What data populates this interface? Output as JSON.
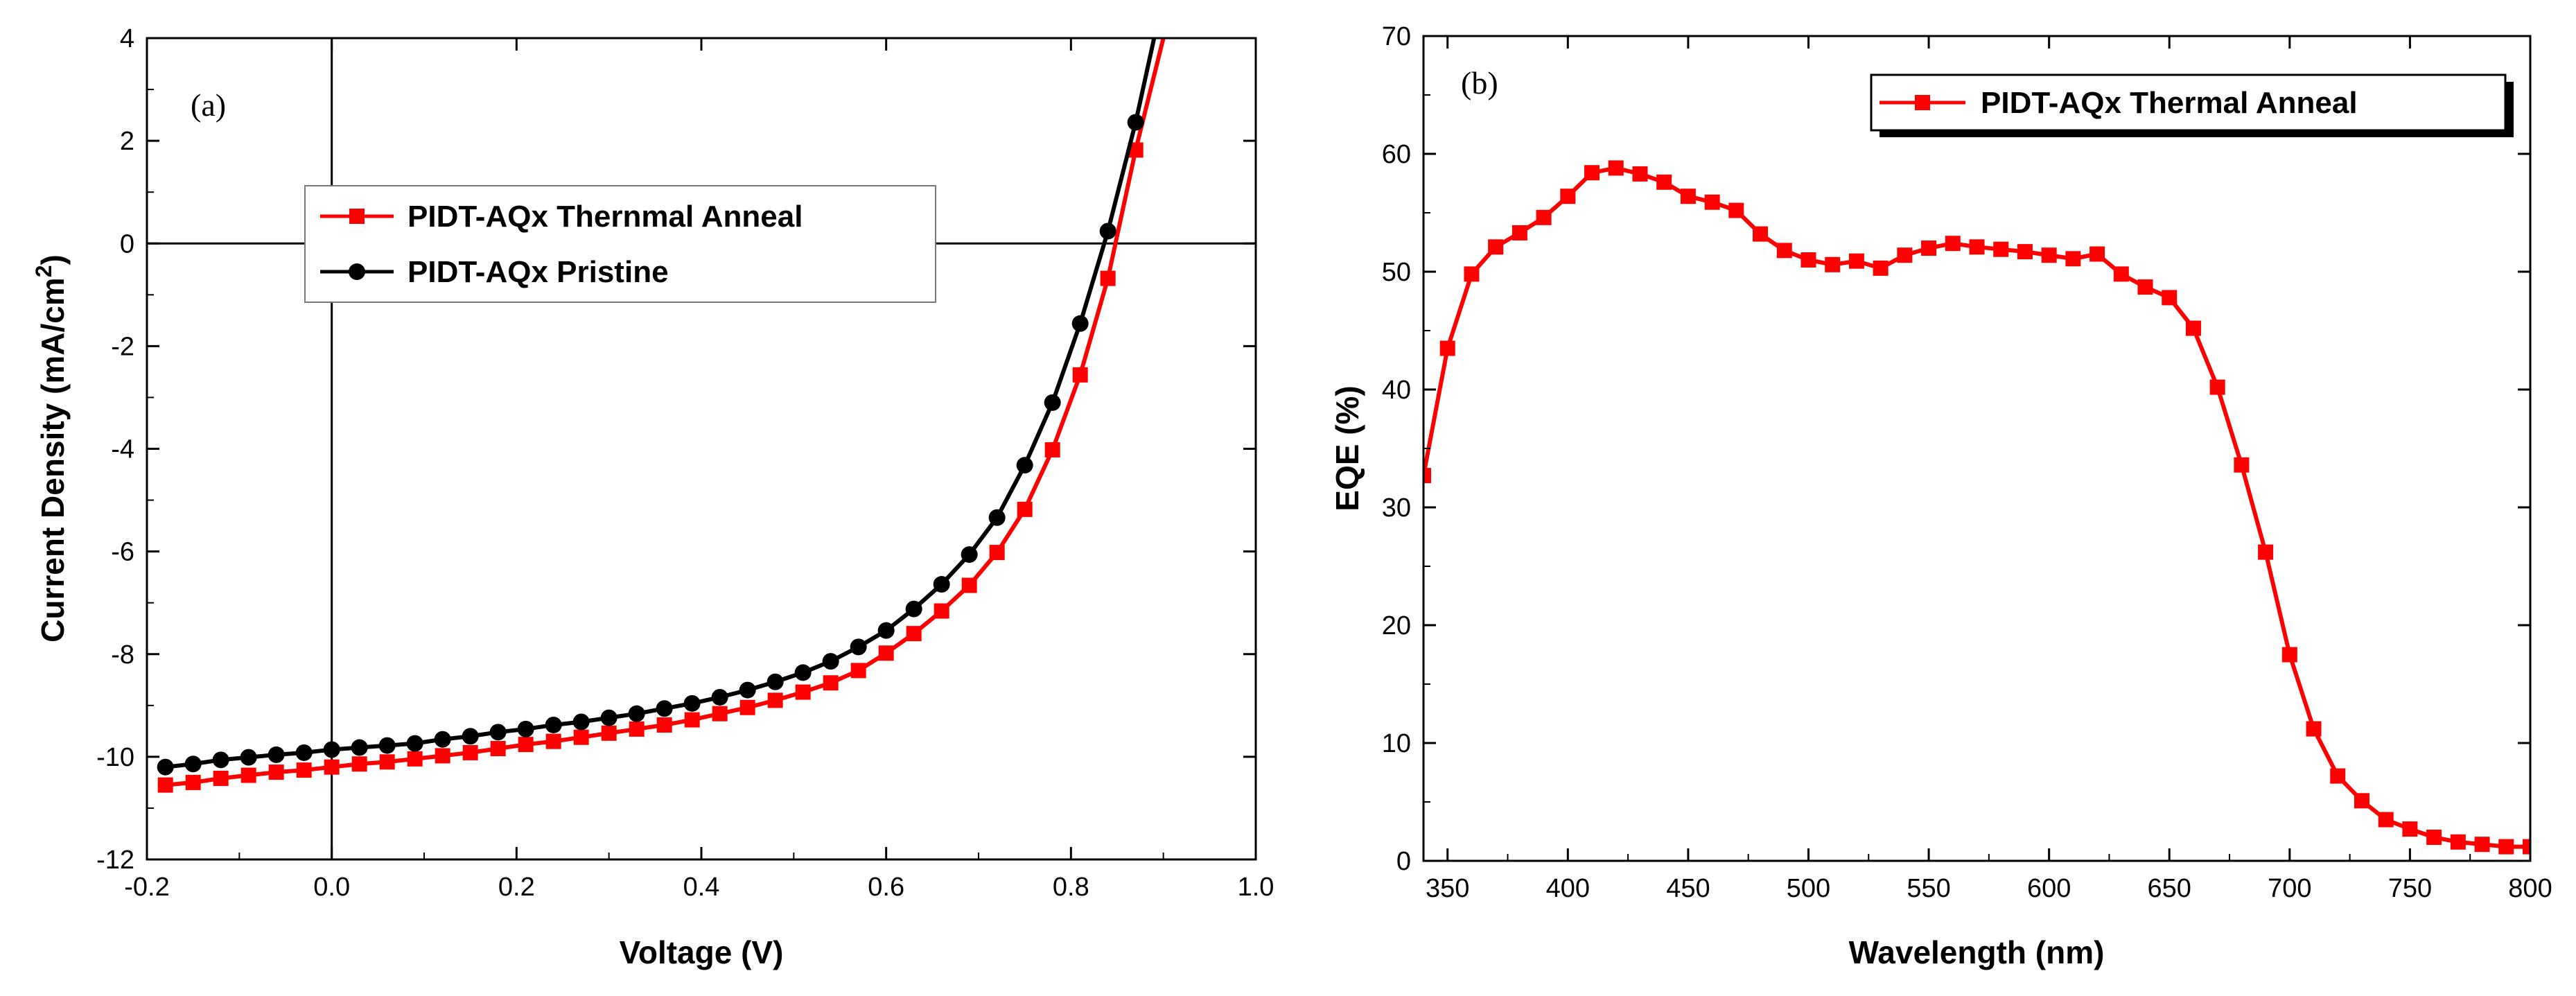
{
  "chart_data": [
    {
      "type": "line",
      "panel_label": "(a)",
      "xlabel": "Voltage (V)",
      "ylabel": "Current Density (mA/cm",
      "ylabel_sup": "2",
      "ylabel_end": ")",
      "xlim": [
        -0.2,
        1.0
      ],
      "ylim": [
        -12,
        4
      ],
      "xticks": [
        -0.2,
        0.0,
        0.2,
        0.4,
        0.6,
        0.8,
        1.0
      ],
      "xtick_labels": [
        "-0.2",
        "0.0",
        "0.2",
        "0.4",
        "0.6",
        "0.8",
        "1.0"
      ],
      "yticks": [
        -12,
        -10,
        -8,
        -6,
        -4,
        -2,
        0,
        2,
        4
      ],
      "ytick_labels": [
        "-12",
        "-10",
        "-8",
        "-6",
        "-4",
        "-2",
        "0",
        "2",
        "4"
      ],
      "legend_position": "upper-left",
      "series": [
        {
          "name": "PIDT-AQx Thernmal Anneal",
          "color": "#ff0000",
          "marker": "square",
          "x": [
            -0.18,
            -0.15,
            -0.12,
            -0.09,
            -0.06,
            -0.03,
            0.0,
            0.03,
            0.06,
            0.09,
            0.12,
            0.15,
            0.18,
            0.21,
            0.24,
            0.27,
            0.3,
            0.33,
            0.36,
            0.39,
            0.42,
            0.45,
            0.48,
            0.51,
            0.54,
            0.57,
            0.6,
            0.63,
            0.66,
            0.69,
            0.72,
            0.75,
            0.78,
            0.81,
            0.84,
            0.87,
            0.9
          ],
          "y": [
            -10.55,
            -10.5,
            -10.42,
            -10.36,
            -10.3,
            -10.26,
            -10.2,
            -10.14,
            -10.1,
            -10.04,
            -9.98,
            -9.92,
            -9.84,
            -9.76,
            -9.7,
            -9.62,
            -9.54,
            -9.46,
            -9.38,
            -9.28,
            -9.16,
            -9.04,
            -8.9,
            -8.74,
            -8.56,
            -8.32,
            -7.98,
            -7.6,
            -7.16,
            -6.66,
            -6.02,
            -5.18,
            -4.02,
            -2.56,
            -0.68,
            1.82,
            4.6
          ]
        },
        {
          "name": "PIDT-AQx Pristine",
          "color": "#000000",
          "marker": "circle",
          "x": [
            -0.18,
            -0.15,
            -0.12,
            -0.09,
            -0.06,
            -0.03,
            0.0,
            0.03,
            0.06,
            0.09,
            0.12,
            0.15,
            0.18,
            0.21,
            0.24,
            0.27,
            0.3,
            0.33,
            0.36,
            0.39,
            0.42,
            0.45,
            0.48,
            0.51,
            0.54,
            0.57,
            0.6,
            0.63,
            0.66,
            0.69,
            0.72,
            0.75,
            0.78,
            0.81,
            0.84,
            0.87,
            0.89
          ],
          "y": [
            -10.2,
            -10.14,
            -10.06,
            -10.01,
            -9.96,
            -9.92,
            -9.86,
            -9.82,
            -9.78,
            -9.74,
            -9.66,
            -9.6,
            -9.52,
            -9.46,
            -9.38,
            -9.32,
            -9.24,
            -9.16,
            -9.06,
            -8.96,
            -8.84,
            -8.7,
            -8.54,
            -8.36,
            -8.14,
            -7.86,
            -7.54,
            -7.12,
            -6.64,
            -6.06,
            -5.34,
            -4.32,
            -3.1,
            -1.56,
            0.24,
            2.36,
            4.2
          ]
        }
      ]
    },
    {
      "type": "line",
      "panel_label": "(b)",
      "xlabel": "Wavelength (nm)",
      "ylabel": "EQE (%)",
      "xlim": [
        340,
        800
      ],
      "ylim": [
        0,
        70
      ],
      "xticks": [
        350,
        400,
        450,
        500,
        550,
        600,
        650,
        700,
        750,
        800
      ],
      "xtick_labels": [
        "350",
        "400",
        "450",
        "500",
        "550",
        "600",
        "650",
        "700",
        "750",
        "800"
      ],
      "yticks": [
        0,
        10,
        20,
        30,
        40,
        50,
        60,
        70
      ],
      "ytick_labels": [
        "0",
        "10",
        "20",
        "30",
        "40",
        "50",
        "60",
        "70"
      ],
      "legend_position": "upper-right",
      "series": [
        {
          "name": "PIDT-AQx Thermal Anneal",
          "color": "#ff0000",
          "marker": "square",
          "x": [
            340,
            350,
            360,
            370,
            380,
            390,
            400,
            410,
            420,
            430,
            440,
            450,
            460,
            470,
            480,
            490,
            500,
            510,
            520,
            530,
            540,
            550,
            560,
            570,
            580,
            590,
            600,
            610,
            620,
            630,
            640,
            650,
            660,
            670,
            680,
            690,
            700,
            710,
            720,
            730,
            740,
            750,
            760,
            770,
            780,
            790,
            800
          ],
          "y": [
            32.7,
            43.5,
            49.8,
            52.1,
            53.3,
            54.6,
            56.4,
            58.4,
            58.8,
            58.3,
            57.6,
            56.4,
            55.9,
            55.2,
            53.2,
            51.8,
            51.0,
            50.6,
            50.9,
            50.3,
            51.4,
            52.0,
            52.4,
            52.1,
            51.9,
            51.7,
            51.4,
            51.1,
            51.5,
            49.8,
            48.7,
            47.8,
            45.2,
            40.2,
            33.6,
            26.2,
            17.5,
            11.2,
            7.2,
            5.1,
            3.5,
            2.7,
            2.0,
            1.6,
            1.4,
            1.2,
            1.2
          ]
        }
      ]
    }
  ]
}
